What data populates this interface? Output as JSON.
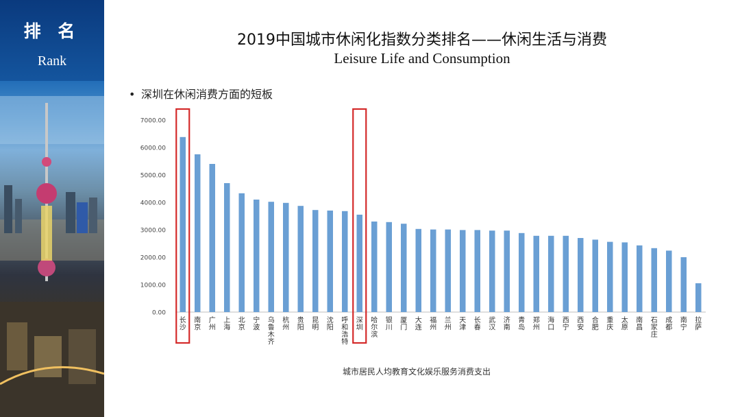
{
  "sidebar": {
    "title_zh": "排 名",
    "title_en": "Rank"
  },
  "header": {
    "title_zh": "2019中国城市休闲化指数分类排名——休闲生活与消费",
    "title_en": "Leisure Life and Consumption"
  },
  "bullet": {
    "marker": "•",
    "text": "深圳在休闲消费方面的短板"
  },
  "colors": {
    "bar": "#6a9fd4",
    "highlight_box": "#d42a2a",
    "axis": "#bfbfbf"
  },
  "chart_data": {
    "type": "bar",
    "title": "",
    "xlabel": "城市居民人均教育文化娱乐服务消费支出",
    "ylabel": "",
    "ylim": [
      0,
      7000
    ],
    "yticks": [
      "0.00",
      "1000.00",
      "2000.00",
      "3000.00",
      "4000.00",
      "5000.00",
      "6000.00",
      "7000.00"
    ],
    "categories": [
      "长沙",
      "南京",
      "广州",
      "上海",
      "北京",
      "宁波",
      "乌鲁木齐",
      "杭州",
      "贵阳",
      "昆明",
      "沈阳",
      "呼和浩特",
      "深圳",
      "哈尔滨",
      "银川",
      "厦门",
      "大连",
      "福州",
      "兰州",
      "天津",
      "长春",
      "武汉",
      "济南",
      "青岛",
      "郑州",
      "海口",
      "西宁",
      "西安",
      "合肥",
      "重庆",
      "太原",
      "南昌",
      "石家庄",
      "成都",
      "南宁",
      "拉萨"
    ],
    "values": [
      6380,
      5750,
      5400,
      4700,
      4330,
      4100,
      4020,
      3980,
      3870,
      3720,
      3700,
      3680,
      3550,
      3300,
      3280,
      3220,
      3030,
      3010,
      3010,
      2990,
      2990,
      2970,
      2970,
      2880,
      2780,
      2780,
      2780,
      2700,
      2640,
      2560,
      2540,
      2430,
      2330,
      2240,
      2000,
      1050
    ],
    "highlighted": [
      "长沙",
      "深圳"
    ]
  }
}
